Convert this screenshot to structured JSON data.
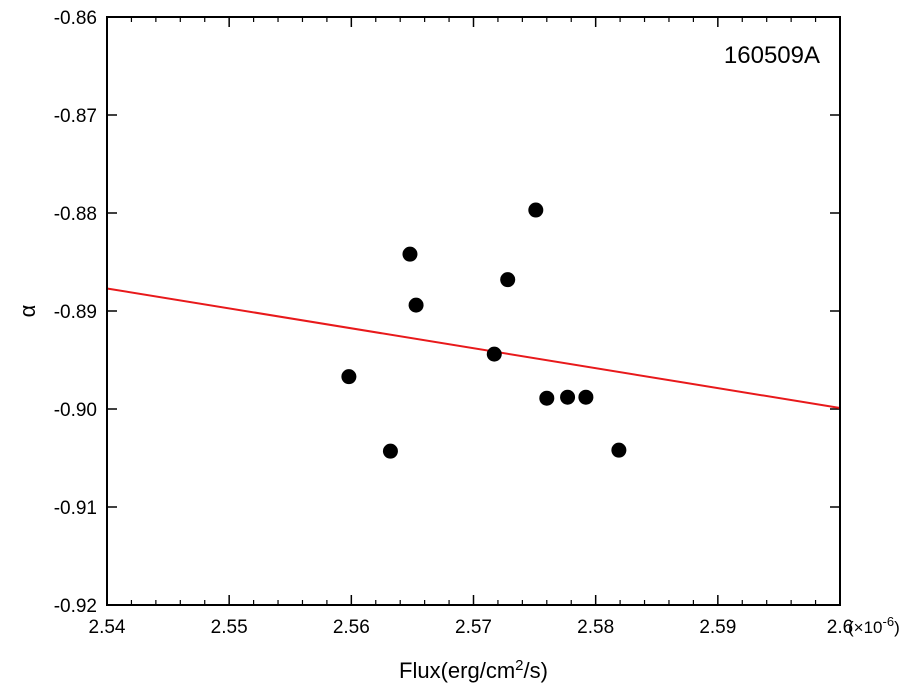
{
  "chart_data": {
    "type": "scatter",
    "title": "",
    "annotation": "160509A",
    "xlabel": "Flux(erg/cm",
    "xlabel_sup": "2",
    "xlabel_tail": "/s)",
    "ylabel": "α",
    "x_multiplier_prefix": "(×10",
    "x_multiplier_exp": "-6",
    "x_multiplier_suffix": ")",
    "xlim": [
      2.54,
      2.6
    ],
    "ylim": [
      -0.92,
      -0.86
    ],
    "x_ticks": [
      2.54,
      2.55,
      2.56,
      2.57,
      2.58,
      2.59,
      2.6
    ],
    "x_tick_labels": [
      "2.54",
      "2.55",
      "2.56",
      "2.57",
      "2.58",
      "2.59",
      "2.6"
    ],
    "y_ticks": [
      -0.92,
      -0.91,
      -0.9,
      -0.89,
      -0.88,
      -0.87,
      -0.86
    ],
    "y_tick_labels": [
      "-0.92",
      "-0.91",
      "-0.90",
      "-0.89",
      "-0.88",
      "-0.87",
      "-0.86"
    ],
    "grid": false,
    "points": [
      {
        "x": 2.5598,
        "y": -0.8967
      },
      {
        "x": 2.5632,
        "y": -0.9043
      },
      {
        "x": 2.5648,
        "y": -0.8842
      },
      {
        "x": 2.5653,
        "y": -0.8894
      },
      {
        "x": 2.5717,
        "y": -0.8944
      },
      {
        "x": 2.5728,
        "y": -0.8868
      },
      {
        "x": 2.5751,
        "y": -0.8797
      },
      {
        "x": 2.576,
        "y": -0.8989
      },
      {
        "x": 2.5777,
        "y": -0.8988
      },
      {
        "x": 2.5792,
        "y": -0.8988
      },
      {
        "x": 2.5819,
        "y": -0.9042
      }
    ],
    "fit_line": {
      "x": [
        2.54,
        2.6
      ],
      "y": [
        -0.8877,
        -0.8999
      ]
    },
    "colors": {
      "points": "#000000",
      "fit_line": "#e8191b",
      "axes": "#000000"
    }
  }
}
